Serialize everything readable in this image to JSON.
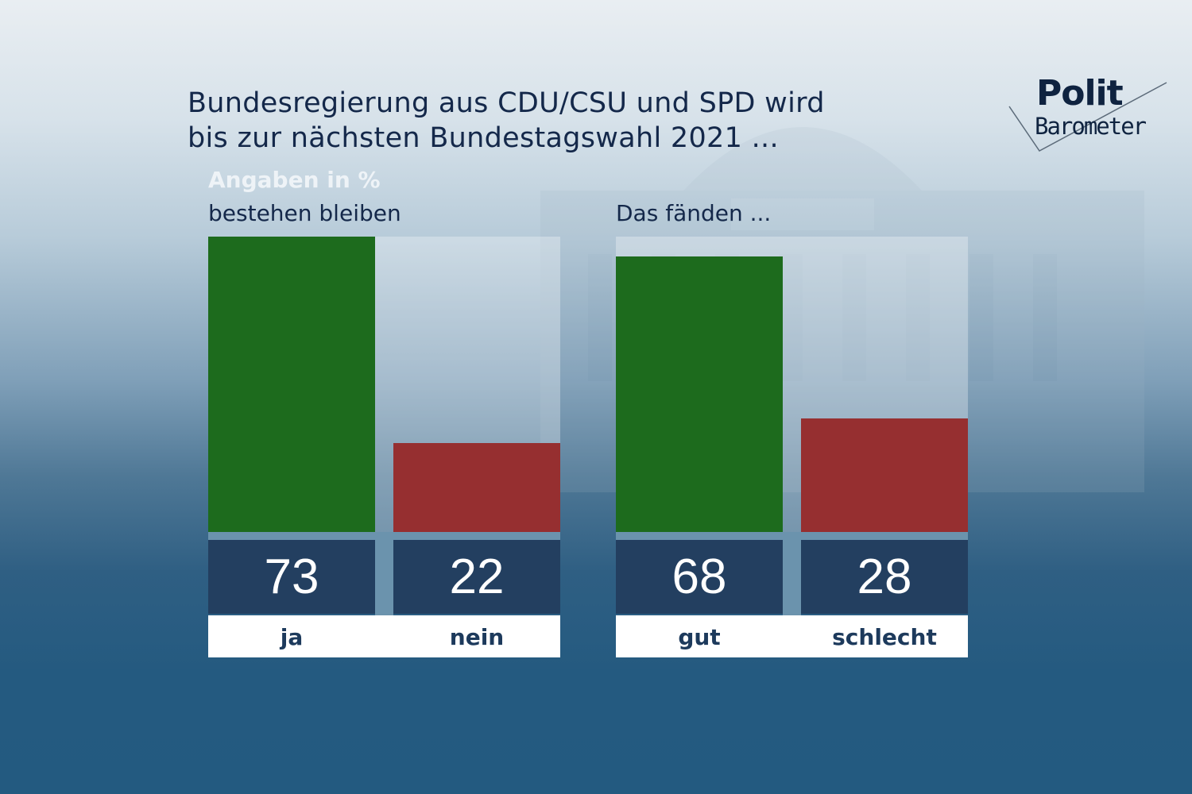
{
  "header": {
    "title_line1": "Bundesregierung aus CDU/CSU und SPD wird",
    "title_line2": "bis zur nächsten Bundestagswahl 2021 ...",
    "unit_note": "Angaben in %"
  },
  "logo": {
    "line1": "Polit",
    "line2": "Barometer"
  },
  "colors": {
    "positive": "#1d6b1d",
    "negative": "#962f30",
    "value_box": "#233f60",
    "label_text": "#1d3a5c"
  },
  "chart_data": [
    {
      "type": "bar",
      "title": "bestehen bleiben",
      "unit": "%",
      "ylim": [
        0,
        73
      ],
      "categories": [
        "ja",
        "nein"
      ],
      "values": [
        73,
        22
      ],
      "colors": [
        "#1d6b1d",
        "#962f30"
      ]
    },
    {
      "type": "bar",
      "title": "Das fänden ...",
      "unit": "%",
      "ylim": [
        0,
        73
      ],
      "categories": [
        "gut",
        "schlecht"
      ],
      "values": [
        68,
        28
      ],
      "colors": [
        "#1d6b1d",
        "#962f30"
      ]
    }
  ]
}
